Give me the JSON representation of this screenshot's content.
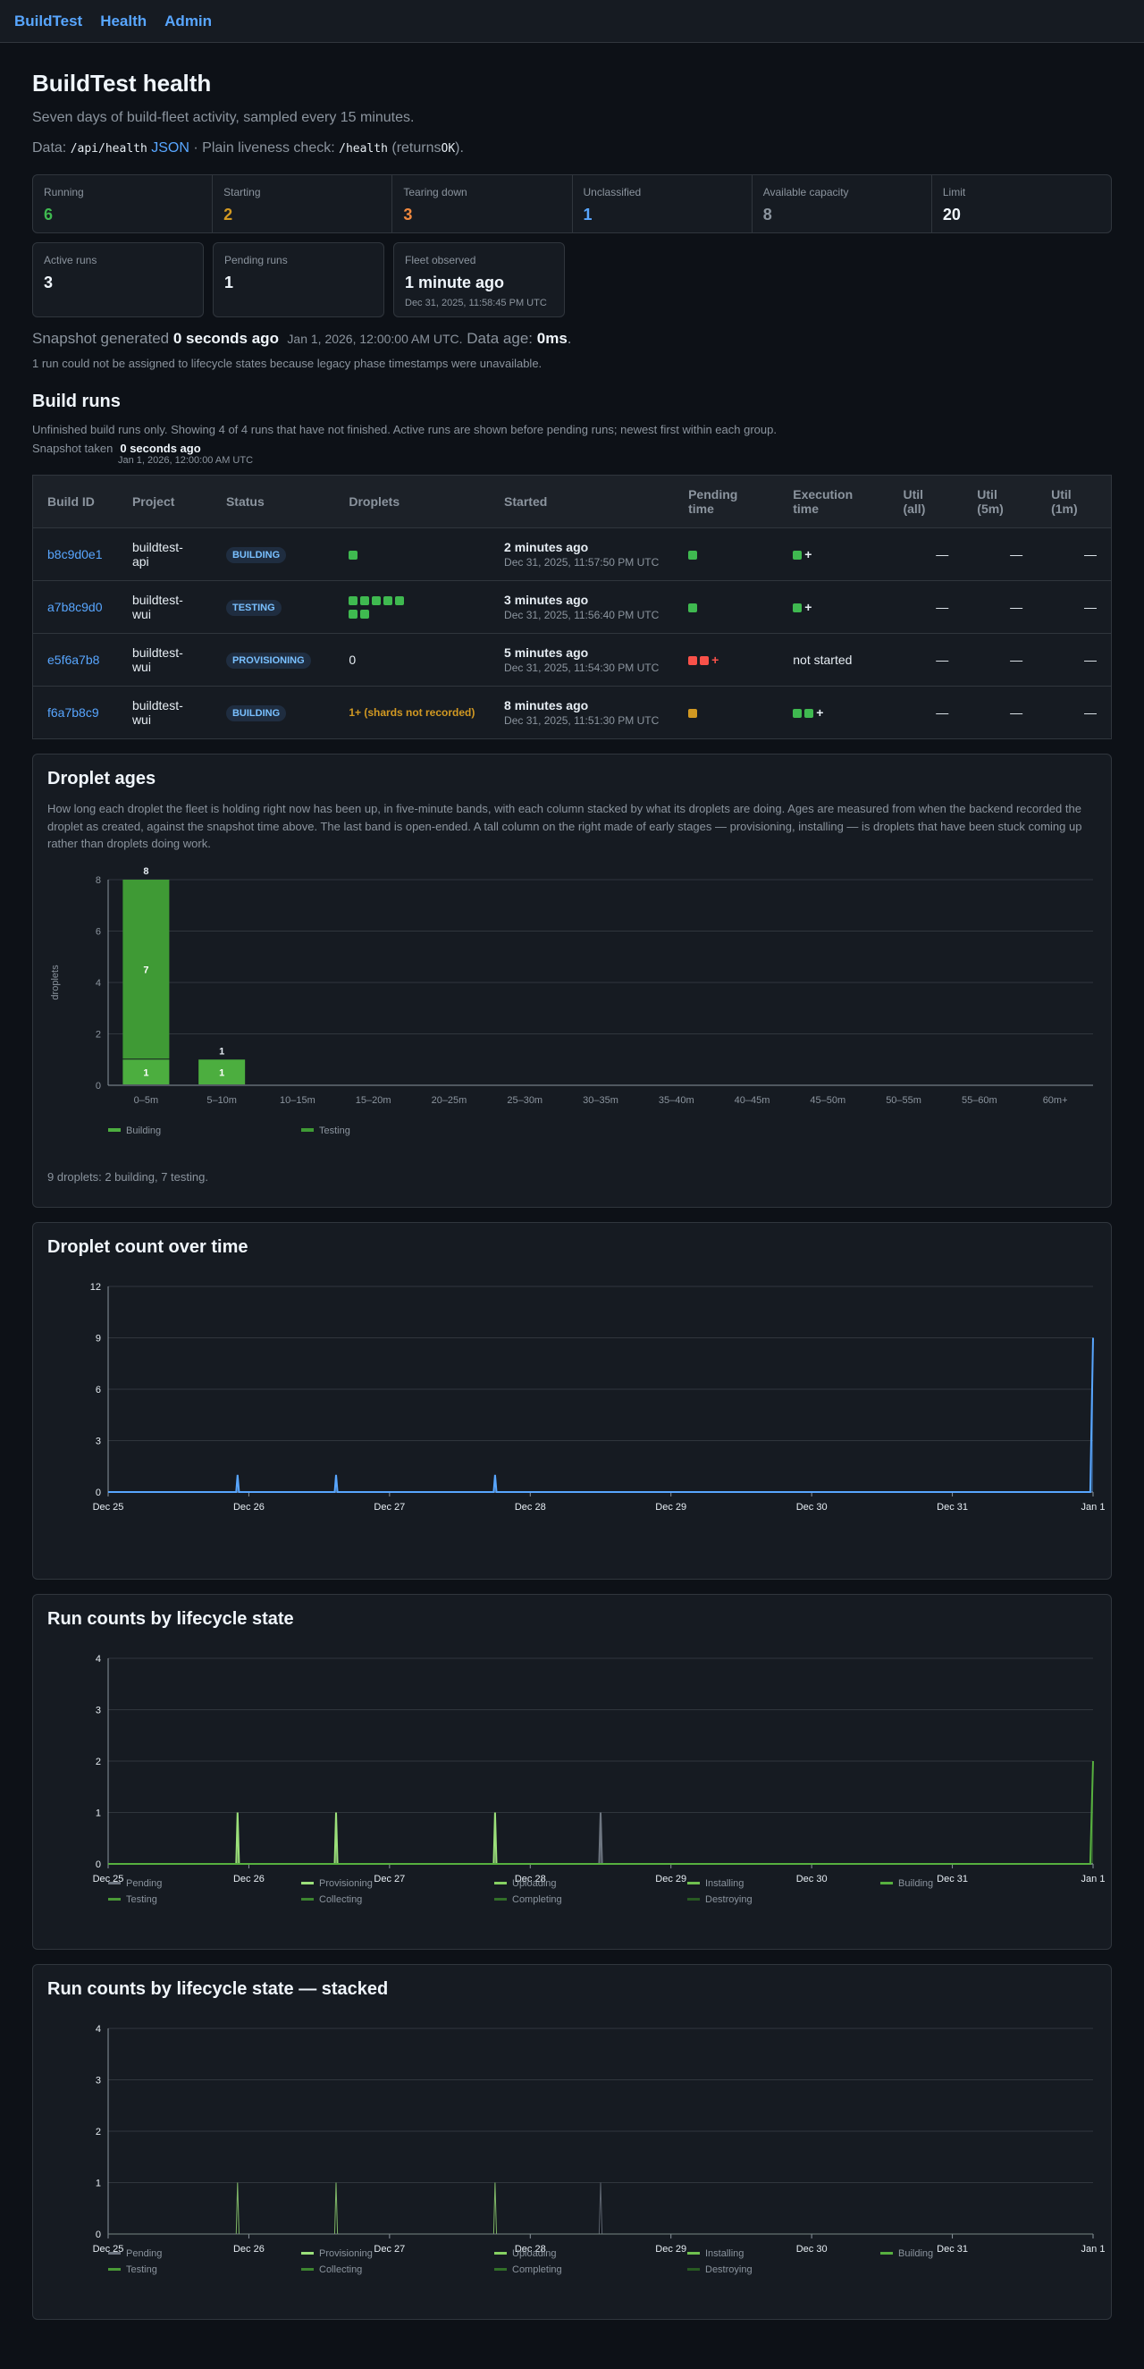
{
  "nav": {
    "brand": "BuildTest",
    "links": [
      "Health",
      "Admin"
    ]
  },
  "page": {
    "title": "BuildTest health",
    "subtitle": "Seven days of build-fleet activity, sampled every 15 minutes.",
    "data_prefix": "Data:",
    "api_path": "/api/health",
    "json_link": "JSON",
    "liveness_text": "· Plain liveness check:",
    "health_path": "/health",
    "returns_prefix": "(returns",
    "returns_value": "OK",
    "returns_suffix": ")."
  },
  "stats": [
    {
      "label": "Running",
      "value": "6",
      "color": "#3fb950"
    },
    {
      "label": "Starting",
      "value": "2",
      "color": "#d29922"
    },
    {
      "label": "Tearing down",
      "value": "3",
      "color": "#f0883e"
    },
    {
      "label": "Unclassified",
      "value": "1",
      "color": "#58a6ff"
    },
    {
      "label": "Available capacity",
      "value": "8",
      "color": "#8b949e"
    },
    {
      "label": "Limit",
      "value": "20",
      "color": "#f0f6fc"
    }
  ],
  "cards": {
    "active_runs": {
      "label": "Active runs",
      "value": "3"
    },
    "pending_runs": {
      "label": "Pending runs",
      "value": "1"
    },
    "fleet_observed": {
      "label": "Fleet observed",
      "value": "1 minute ago",
      "date": "Dec 31, 2025, 11:58:45 PM UTC"
    }
  },
  "snapshot": {
    "prefix": "Snapshot generated",
    "ago": "0 seconds ago",
    "date": "Jan 1, 2026, 12:00:00 AM UTC.",
    "age_prefix": "Data age:",
    "age": "0ms",
    "age_suffix": ".",
    "note": "1 run could not be assigned to lifecycle states because legacy phase timestamps were unavailable."
  },
  "runs": {
    "title": "Build runs",
    "desc": "Unfinished build runs only. Showing 4 of 4 runs that have not finished. Active runs are shown before pending runs; newest first within each group.",
    "snap_label": "Snapshot taken",
    "snap_ago": "0 seconds ago",
    "snap_date": "Jan 1, 2026, 12:00:00 AM UTC",
    "headers": [
      "Build ID",
      "Project",
      "Status",
      "Droplets",
      "Started",
      "Pending time",
      "Execution time",
      "Util (all)",
      "Util (5m)",
      "Util (1m)"
    ],
    "rows": [
      {
        "id": "b8c9d0e1",
        "project": "buildtest-api",
        "status": "BUILDING",
        "droplets": "",
        "started": "2 minutes ago",
        "started_date": "Dec 31, 2025, 11:57:50 PM UTC",
        "exec": "+",
        "u_all": "—",
        "u5": "—",
        "u1": "—"
      },
      {
        "id": "a7b8c9d0",
        "project": "buildtest-wui",
        "status": "TESTING",
        "droplets": "",
        "started": "3 minutes ago",
        "started_date": "Dec 31, 2025, 11:56:40 PM UTC",
        "exec": "+",
        "u_all": "—",
        "u5": "—",
        "u1": "—"
      },
      {
        "id": "e5f6a7b8",
        "project": "buildtest-wui",
        "status": "PROVISIONING",
        "droplets": "0",
        "started": "5 minutes ago",
        "started_date": "Dec 31, 2025, 11:54:30 PM UTC",
        "pending_extra": "+",
        "exec": "not started",
        "u_all": "—",
        "u5": "—",
        "u1": "—"
      },
      {
        "id": "f6a7b8c9",
        "project": "buildtest-wui",
        "status": "BUILDING",
        "droplets": "1+ (shards not recorded)",
        "started": "8 minutes ago",
        "started_date": "Dec 31, 2025, 11:51:30 PM UTC",
        "exec": "+",
        "u_all": "—",
        "u5": "—",
        "u1": "—"
      }
    ]
  },
  "droplet_ages": {
    "title": "Droplet ages",
    "desc": "How long each droplet the fleet is holding right now has been up, in five-minute bands, with each column stacked by what its droplets are doing. Ages are measured from when the backend recorded the droplet as created, against the snapshot time above. The last band is open-ended. A tall column on the right made of early stages — provisioning, installing — is droplets that have been stuck coming up rather than droplets doing work.",
    "footnote": "9 droplets: 2 building, 7 testing."
  },
  "chart_data": [
    {
      "type": "bar",
      "title": "Droplet ages",
      "ylabel": "droplets",
      "categories": [
        "0–5m",
        "5–10m",
        "10–15m",
        "15–20m",
        "20–25m",
        "25–30m",
        "30–35m",
        "35–40m",
        "40–45m",
        "45–50m",
        "50–55m",
        "55–60m",
        "60m+"
      ],
      "series": [
        {
          "name": "Building",
          "color": "#4cae3f",
          "values": [
            1,
            1,
            0,
            0,
            0,
            0,
            0,
            0,
            0,
            0,
            0,
            0,
            0
          ]
        },
        {
          "name": "Testing",
          "color": "#3f9a35",
          "values": [
            7,
            0,
            0,
            0,
            0,
            0,
            0,
            0,
            0,
            0,
            0,
            0,
            0
          ]
        }
      ],
      "totals": [
        "8",
        "1"
      ],
      "ylim": [
        0,
        8
      ],
      "yticks": [
        0,
        2,
        4,
        6,
        8
      ],
      "legend": "bottom-left"
    },
    {
      "type": "line",
      "title": "Droplet count over time",
      "xticks": [
        "Dec 25",
        "Dec 26",
        "Dec 27",
        "Dec 28",
        "Dec 29",
        "Dec 30",
        "Dec 31",
        "Jan 1"
      ],
      "ylim": [
        0,
        12
      ],
      "yticks": [
        0,
        3,
        6,
        9,
        12
      ],
      "series": [
        {
          "color": "#58a6ff",
          "points": [
            [
              0,
              0
            ],
            [
              0.91,
              0
            ],
            [
              0.92,
              1
            ],
            [
              0.93,
              0
            ],
            [
              1.61,
              0
            ],
            [
              1.62,
              1
            ],
            [
              1.63,
              0
            ],
            [
              2.74,
              0
            ],
            [
              2.75,
              1
            ],
            [
              2.76,
              0
            ],
            [
              6.98,
              0
            ],
            [
              7.0,
              9
            ]
          ]
        }
      ]
    },
    {
      "type": "line",
      "title": "Run counts by lifecycle state",
      "xticks": [
        "Dec 25",
        "Dec 26",
        "Dec 27",
        "Dec 28",
        "Dec 29",
        "Dec 30",
        "Dec 31",
        "Jan 1"
      ],
      "ylim": [
        0,
        4
      ],
      "yticks": [
        0,
        1,
        2,
        3,
        4
      ],
      "legend": [
        "Pending",
        "Provisioning",
        "Uploading",
        "Installing",
        "Building",
        "Testing",
        "Collecting",
        "Completing",
        "Destroying"
      ],
      "legend_colors": [
        "#6e7681",
        "#9be07a",
        "#86d162",
        "#6fc04f",
        "#57b03f",
        "#4a9a36",
        "#3d8530",
        "#326f29",
        "#285a22"
      ],
      "series": [
        {
          "name": "Provisioning",
          "color": "#9be07a",
          "points": [
            [
              0,
              0
            ],
            [
              0.91,
              0
            ],
            [
              0.92,
              1
            ],
            [
              0.93,
              0
            ],
            [
              1.61,
              0
            ],
            [
              1.62,
              1
            ],
            [
              1.63,
              0
            ],
            [
              2.74,
              0
            ],
            [
              2.75,
              1
            ],
            [
              2.76,
              0
            ],
            [
              7,
              0
            ]
          ]
        },
        {
          "name": "Pending",
          "color": "#6e7681",
          "points": [
            [
              0,
              0
            ],
            [
              3.49,
              0
            ],
            [
              3.5,
              1
            ],
            [
              3.51,
              0
            ],
            [
              7,
              0
            ]
          ]
        },
        {
          "name": "Building",
          "color": "#57b03f",
          "points": [
            [
              0,
              0
            ],
            [
              6.98,
              0
            ],
            [
              7.0,
              2
            ]
          ]
        }
      ]
    },
    {
      "type": "area",
      "title": "Run counts by lifecycle state — stacked",
      "xticks": [
        "Dec 25",
        "Dec 26",
        "Dec 27",
        "Dec 28",
        "Dec 29",
        "Dec 30",
        "Dec 31",
        "Jan 1"
      ],
      "ylim": [
        0,
        4
      ],
      "yticks": [
        0,
        1,
        2,
        3,
        4
      ],
      "legend": [
        "Pending",
        "Provisioning",
        "Uploading",
        "Installing",
        "Building",
        "Testing",
        "Collecting",
        "Completing",
        "Destroying"
      ],
      "legend_colors": [
        "#6e7681",
        "#9be07a",
        "#86d162",
        "#6fc04f",
        "#57b03f",
        "#4a9a36",
        "#3d8530",
        "#326f29",
        "#285a22"
      ],
      "series": [
        {
          "name": "Provisioning",
          "color": "#9be07a",
          "points": [
            [
              0,
              0
            ],
            [
              0.91,
              0
            ],
            [
              0.92,
              1
            ],
            [
              0.93,
              0
            ],
            [
              1.61,
              0
            ],
            [
              1.62,
              1
            ],
            [
              1.63,
              0
            ],
            [
              2.74,
              0
            ],
            [
              2.75,
              1
            ],
            [
              2.76,
              0
            ],
            [
              7,
              0
            ]
          ]
        },
        {
          "name": "Pending",
          "color": "#6e7681",
          "points": [
            [
              0,
              0
            ],
            [
              3.49,
              0
            ],
            [
              3.5,
              1
            ],
            [
              3.51,
              0
            ],
            [
              7,
              0
            ]
          ]
        }
      ]
    }
  ],
  "sections": {
    "droplet_count_title": "Droplet count over time",
    "lifecycle_title": "Run counts by lifecycle state",
    "stacked_title": "Run counts by lifecycle state — stacked"
  }
}
